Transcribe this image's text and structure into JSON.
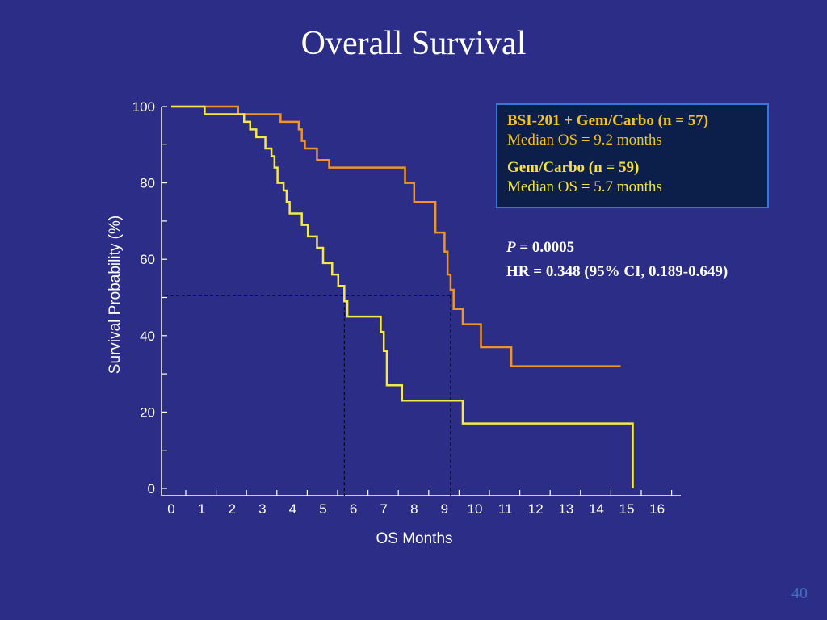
{
  "slide": {
    "title": "Overall Survival",
    "page_number": "40"
  },
  "legend": {
    "arm_a_name": "BSI-201 + Gem/Carbo (n = 57)",
    "arm_a_median": "Median OS = 9.2 months",
    "arm_b_name": "Gem/Carbo (n = 59)",
    "arm_b_median": "Median OS = 5.7 months"
  },
  "stats": {
    "p_label": "P",
    "p_value": " = 0.0005",
    "hr": "HR = 0.348 (95% CI, 0.189-0.649)"
  },
  "colors": {
    "background": "#2b2d87",
    "arm_a": "#f0932b",
    "arm_b": "#f5e84a"
  },
  "chart_data": {
    "type": "line",
    "step": true,
    "xlabel": "OS Months",
    "ylabel": "Survival Probability (%)",
    "xlim": [
      0,
      16.5
    ],
    "ylim": [
      0,
      100
    ],
    "xticks": [
      "0",
      "1",
      "2",
      "3",
      "4",
      "5",
      "6",
      "7",
      "8",
      "9",
      "10",
      "11",
      "12",
      "13",
      "14",
      "15",
      "16"
    ],
    "yticks": [
      "0",
      "20",
      "40",
      "60",
      "80",
      "100"
    ],
    "median_y": 50.5,
    "median_x": [
      5.7,
      9.2
    ],
    "series": [
      {
        "name": "BSI-201 + Gem/Carbo (n = 57)",
        "color": "#f0932b",
        "x": [
          0,
          2.2,
          3.6,
          4.2,
          4.3,
          4.4,
          4.8,
          5.2,
          7.7,
          8.0,
          8.7,
          9.0,
          9.1,
          9.2,
          9.3,
          9.6,
          10.2,
          11.2
        ],
        "y": [
          100,
          98,
          96,
          94,
          91,
          89,
          86,
          84,
          80,
          75,
          67,
          62,
          56,
          52,
          47,
          43,
          37,
          32
        ],
        "x_end": 14.8
      },
      {
        "name": "Gem/Carbo (n = 59)",
        "color": "#f5e84a",
        "x": [
          0,
          1.1,
          2.4,
          2.6,
          2.8,
          3.1,
          3.3,
          3.4,
          3.5,
          3.7,
          3.8,
          3.9,
          4.3,
          4.5,
          4.8,
          5.0,
          5.3,
          5.5,
          5.7,
          5.8,
          6.9,
          7.0,
          7.1,
          7.6,
          9.6
        ],
        "y": [
          100,
          98,
          96,
          94,
          92,
          89,
          87,
          84,
          80,
          78,
          75,
          72,
          69,
          66,
          63,
          59,
          56,
          53,
          49,
          45,
          41,
          36,
          27,
          23,
          17
        ],
        "x_end": 15.2,
        "end_drop": 0
      }
    ]
  }
}
